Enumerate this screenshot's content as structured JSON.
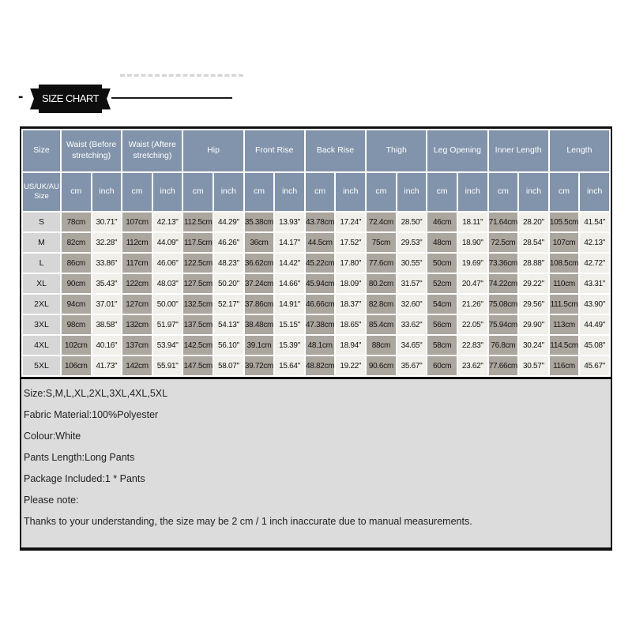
{
  "banner": {
    "dash": "-",
    "label": "SIZE CHART"
  },
  "colors": {
    "header_blue": "#8294ab",
    "cell_cm_gray": "#aba69e",
    "cell_inch_light": "#f1efea",
    "size_column_gray": "#d6d6d6",
    "notes_background": "#dcdcdc",
    "ribbon_black": "#0d0d0d"
  },
  "table": {
    "corner_top": "Size",
    "corner_bottom": "US/UK/AU Size",
    "unit_cm": "cm",
    "unit_inch": "inch",
    "groups": [
      "Waist (Before stretching)",
      "Waist (Aftere stretching)",
      "Hip",
      "Front Rise",
      "Back Rise",
      "Thigh",
      "Leg Opening",
      "Inner Length",
      "Length"
    ],
    "rows": [
      {
        "size": "S",
        "cells": [
          "78cm",
          "30.71\"",
          "107cm",
          "42.13\"",
          "112.5cm",
          "44.29\"",
          "35.38cm",
          "13.93\"",
          "43.78cm",
          "17.24\"",
          "72.4cm",
          "28.50\"",
          "46cm",
          "18.11\"",
          "71.64cm",
          "28.20\"",
          "105.5cm",
          "41.54\""
        ]
      },
      {
        "size": "M",
        "cells": [
          "82cm",
          "32.28\"",
          "112cm",
          "44.09\"",
          "117.5cm",
          "46.26\"",
          "36cm",
          "14.17\"",
          "44.5cm",
          "17.52\"",
          "75cm",
          "29.53\"",
          "48cm",
          "18.90\"",
          "72.5cm",
          "28.54\"",
          "107cm",
          "42.13\""
        ]
      },
      {
        "size": "L",
        "cells": [
          "86cm",
          "33.86\"",
          "117cm",
          "46.06\"",
          "122.5cm",
          "48.23\"",
          "36.62cm",
          "14.42\"",
          "45.22cm",
          "17.80\"",
          "77.6cm",
          "30.55\"",
          "50cm",
          "19.69\"",
          "73.36cm",
          "28.88\"",
          "108.5cm",
          "42.72\""
        ]
      },
      {
        "size": "XL",
        "cells": [
          "90cm",
          "35.43\"",
          "122cm",
          "48.03\"",
          "127.5cm",
          "50.20\"",
          "37.24cm",
          "14.66\"",
          "45.94cm",
          "18.09\"",
          "80.2cm",
          "31.57\"",
          "52cm",
          "20.47\"",
          "74.22cm",
          "29.22\"",
          "110cm",
          "43.31\""
        ]
      },
      {
        "size": "2XL",
        "cells": [
          "94cm",
          "37.01\"",
          "127cm",
          "50.00\"",
          "132.5cm",
          "52.17\"",
          "37.86cm",
          "14.91\"",
          "46.66cm",
          "18.37\"",
          "82.8cm",
          "32.60\"",
          "54cm",
          "21.26\"",
          "75.08cm",
          "29.56\"",
          "111.5cm",
          "43.90\""
        ]
      },
      {
        "size": "3XL",
        "cells": [
          "98cm",
          "38.58\"",
          "132cm",
          "51.97\"",
          "137.5cm",
          "54.13\"",
          "38.48cm",
          "15.15\"",
          "47.38cm",
          "18.65\"",
          "85.4cm",
          "33.62\"",
          "56cm",
          "22.05\"",
          "75.94cm",
          "29.90\"",
          "113cm",
          "44.49\""
        ]
      },
      {
        "size": "4XL",
        "cells": [
          "102cm",
          "40.16\"",
          "137cm",
          "53.94\"",
          "142.5cm",
          "56.10\"",
          "39.1cm",
          "15.39\"",
          "48.1cm",
          "18.94\"",
          "88cm",
          "34.65\"",
          "58cm",
          "22.83\"",
          "76.8cm",
          "30.24\"",
          "114.5cm",
          "45.08\""
        ]
      },
      {
        "size": "5XL",
        "cells": [
          "106cm",
          "41.73\"",
          "142cm",
          "55.91\"",
          "147.5cm",
          "58.07\"",
          "39.72cm",
          "15.64\"",
          "48.82cm",
          "19.22\"",
          "90.6cm",
          "35.67\"",
          "60cm",
          "23.62\"",
          "77.66cm",
          "30.57\"",
          "116cm",
          "45.67\""
        ]
      }
    ]
  },
  "notes": {
    "lines": [
      "Size:S,M,L,XL,2XL,3XL,4XL,5XL",
      "Fabric Material:100%Polyester",
      "Colour:White",
      "Pants Length:Long Pants",
      "Package Included:1 * Pants",
      "Please note:",
      "Thanks to your understanding, the size may be 2 cm / 1 inch inaccurate due to manual measurements."
    ]
  }
}
